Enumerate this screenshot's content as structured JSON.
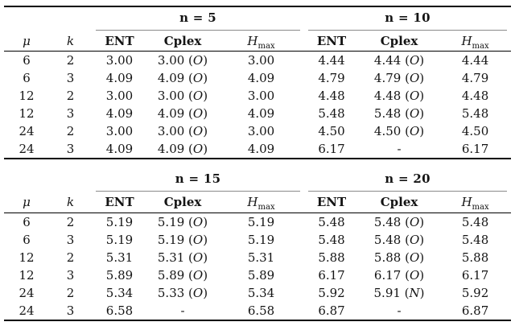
{
  "page": {
    "background": "#ffffff",
    "text_color": "#141414",
    "rule_color": "#000000",
    "cmidrule_color": "#8a8a8a"
  },
  "tables": [
    {
      "groups": [
        {
          "label": "n = 5"
        },
        {
          "label": "n = 10"
        }
      ],
      "col_headers": {
        "mu": "μ",
        "k": "k",
        "ent": "ENT",
        "cplex": "Cplex",
        "hmax_base": "H",
        "hmax_sub": "max"
      },
      "rows": [
        {
          "mu": "6",
          "k": "2",
          "ent1": "3.00",
          "cplex1": "3.00 (O)",
          "hmax1": "3.00",
          "ent2": "4.44",
          "cplex2": "4.44 (O)",
          "hmax2": "4.44"
        },
        {
          "mu": "6",
          "k": "3",
          "ent1": "4.09",
          "cplex1": "4.09 (O)",
          "hmax1": "4.09",
          "ent2": "4.79",
          "cplex2": "4.79 (O)",
          "hmax2": "4.79"
        },
        {
          "mu": "12",
          "k": "2",
          "ent1": "3.00",
          "cplex1": "3.00 (O)",
          "hmax1": "3.00",
          "ent2": "4.48",
          "cplex2": "4.48 (O)",
          "hmax2": "4.48"
        },
        {
          "mu": "12",
          "k": "3",
          "ent1": "4.09",
          "cplex1": "4.09 (O)",
          "hmax1": "4.09",
          "ent2": "5.48",
          "cplex2": "5.48 (O)",
          "hmax2": "5.48"
        },
        {
          "mu": "24",
          "k": "2",
          "ent1": "3.00",
          "cplex1": "3.00 (O)",
          "hmax1": "3.00",
          "ent2": "4.50",
          "cplex2": "4.50 (O)",
          "hmax2": "4.50"
        },
        {
          "mu": "24",
          "k": "3",
          "ent1": "4.09",
          "cplex1": "4.09 (O)",
          "hmax1": "4.09",
          "ent2": "6.17",
          "cplex2": "-",
          "hmax2": "6.17"
        }
      ]
    },
    {
      "groups": [
        {
          "label": "n = 15"
        },
        {
          "label": "n = 20"
        }
      ],
      "col_headers": {
        "mu": "μ",
        "k": "k",
        "ent": "ENT",
        "cplex": "Cplex",
        "hmax_base": "H",
        "hmax_sub": "max"
      },
      "rows": [
        {
          "mu": "6",
          "k": "2",
          "ent1": "5.19",
          "cplex1": "5.19 (O)",
          "hmax1": "5.19",
          "ent2": "5.48",
          "cplex2": "5.48 (O)",
          "hmax2": "5.48"
        },
        {
          "mu": "6",
          "k": "3",
          "ent1": "5.19",
          "cplex1": "5.19 (O)",
          "hmax1": "5.19",
          "ent2": "5.48",
          "cplex2": "5.48 (O)",
          "hmax2": "5.48"
        },
        {
          "mu": "12",
          "k": "2",
          "ent1": "5.31",
          "cplex1": "5.31 (O)",
          "hmax1": "5.31",
          "ent2": "5.88",
          "cplex2": "5.88 (O)",
          "hmax2": "5.88"
        },
        {
          "mu": "12",
          "k": "3",
          "ent1": "5.89",
          "cplex1": "5.89 (O)",
          "hmax1": "5.89",
          "ent2": "6.17",
          "cplex2": "6.17 (O)",
          "hmax2": "6.17"
        },
        {
          "mu": "24",
          "k": "2",
          "ent1": "5.34",
          "cplex1": "5.33 (O)",
          "hmax1": "5.34",
          "ent2": "5.92",
          "cplex2": "5.91 (N)",
          "hmax2": "5.92"
        },
        {
          "mu": "24",
          "k": "3",
          "ent1": "6.58",
          "cplex1": "-",
          "hmax1": "6.58",
          "ent2": "6.87",
          "cplex2": "-",
          "hmax2": "6.87"
        }
      ]
    }
  ]
}
